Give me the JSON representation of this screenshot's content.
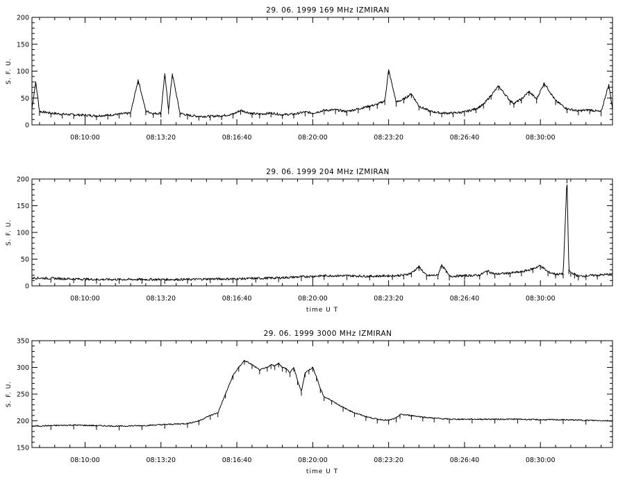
{
  "chart_data": [
    {
      "type": "line",
      "title": "29. 06. 1999    169 MHz    IZMIRAN",
      "ylabel": "S. F. U.",
      "xlabel": "",
      "x_range": [
        "08:07:40",
        "08:33:10"
      ],
      "x_ticks": [
        "08:10:00",
        "08:13:20",
        "08:16:40",
        "08:20:00",
        "08:23:20",
        "08:26:40",
        "08:30:00"
      ],
      "ylim": [
        0,
        200
      ],
      "y_ticks": [
        0,
        50,
        100,
        150,
        200
      ],
      "grid": false,
      "series": [
        {
          "x": [
            "08:07:40",
            "08:07:50",
            "08:08:00",
            "08:08:30",
            "08:09:00",
            "08:09:30",
            "08:10:00",
            "08:10:30",
            "08:11:00",
            "08:11:30",
            "08:12:00",
            "08:12:20",
            "08:12:40",
            "08:13:00",
            "08:13:20",
            "08:13:30",
            "08:13:40",
            "08:13:50",
            "08:14:10",
            "08:14:30",
            "08:15:00",
            "08:15:30",
            "08:16:00",
            "08:16:30",
            "08:16:50",
            "08:17:20",
            "08:17:40",
            "08:18:10",
            "08:18:40",
            "08:19:10",
            "08:19:40",
            "08:20:00",
            "08:20:30",
            "08:21:00",
            "08:21:30",
            "08:22:00",
            "08:22:30",
            "08:22:50",
            "08:23:10",
            "08:23:20",
            "08:23:40",
            "08:24:00",
            "08:24:20",
            "08:24:40",
            "08:25:10",
            "08:25:40",
            "08:26:10",
            "08:26:40",
            "08:27:10",
            "08:27:30",
            "08:27:50",
            "08:28:10",
            "08:28:40",
            "08:28:50",
            "08:29:10",
            "08:29:30",
            "08:29:50",
            "08:30:10",
            "08:30:40",
            "08:31:10",
            "08:31:40",
            "08:32:10",
            "08:32:40",
            "08:33:00",
            "08:33:10"
          ],
          "values": [
            30,
            80,
            25,
            22,
            20,
            19,
            18,
            17,
            18,
            20,
            22,
            84,
            26,
            21,
            22,
            95,
            28,
            95,
            22,
            18,
            16,
            16,
            17,
            20,
            27,
            21,
            20,
            22,
            19,
            20,
            24,
            22,
            27,
            28,
            25,
            30,
            35,
            38,
            45,
            102,
            42,
            48,
            58,
            35,
            25,
            22,
            22,
            24,
            30,
            38,
            55,
            72,
            45,
            40,
            48,
            62,
            48,
            78,
            45,
            30,
            26,
            28,
            24,
            75,
            30
          ]
        }
      ]
    },
    {
      "type": "line",
      "title": "29. 06. 1999    204 MHz    IZMIRAN",
      "ylabel": "S. F. U.",
      "xlabel": "time  U T",
      "x_range": [
        "08:07:40",
        "08:33:10"
      ],
      "x_ticks": [
        "08:10:00",
        "08:13:20",
        "08:16:40",
        "08:20:00",
        "08:23:20",
        "08:26:40",
        "08:30:00"
      ],
      "ylim": [
        0,
        200
      ],
      "y_ticks": [
        0,
        50,
        100,
        150,
        200
      ],
      "grid": false,
      "series": [
        {
          "x": [
            "08:07:40",
            "08:08:30",
            "08:09:30",
            "08:10:30",
            "08:11:30",
            "08:12:30",
            "08:13:30",
            "08:14:30",
            "08:15:30",
            "08:16:30",
            "08:17:30",
            "08:18:30",
            "08:19:30",
            "08:20:00",
            "08:20:30",
            "08:21:30",
            "08:22:30",
            "08:23:30",
            "08:24:00",
            "08:24:20",
            "08:24:40",
            "08:25:00",
            "08:25:30",
            "08:25:40",
            "08:26:00",
            "08:26:40",
            "08:27:20",
            "08:27:40",
            "08:28:00",
            "08:28:40",
            "08:29:10",
            "08:29:40",
            "08:30:00",
            "08:30:20",
            "08:30:40",
            "08:31:00",
            "08:31:10",
            "08:31:15",
            "08:31:20",
            "08:31:30",
            "08:31:40",
            "08:32:00",
            "08:32:30",
            "08:33:10"
          ],
          "values": [
            15,
            14,
            13,
            12,
            12,
            12,
            12,
            12,
            13,
            13,
            14,
            15,
            17,
            18,
            19,
            19,
            18,
            19,
            20,
            24,
            36,
            19,
            20,
            40,
            18,
            19,
            20,
            28,
            22,
            24,
            26,
            32,
            38,
            26,
            22,
            22,
            200,
            30,
            25,
            22,
            18,
            19,
            20,
            22
          ]
        }
      ]
    },
    {
      "type": "line",
      "title": "29. 06. 1999    3000 MHz    IZMIRAN",
      "ylabel": "S. F. U.",
      "xlabel": "time  U T",
      "x_range": [
        "08:07:40",
        "08:33:10"
      ],
      "x_ticks": [
        "08:10:00",
        "08:13:20",
        "08:16:40",
        "08:20:00",
        "08:23:20",
        "08:26:40",
        "08:30:00"
      ],
      "ylim": [
        150,
        350
      ],
      "y_ticks": [
        150,
        200,
        250,
        300,
        350
      ],
      "grid": false,
      "series": [
        {
          "x": [
            "08:07:40",
            "08:08:30",
            "08:09:30",
            "08:10:30",
            "08:11:30",
            "08:12:30",
            "08:13:30",
            "08:14:30",
            "08:15:00",
            "08:15:30",
            "08:15:50",
            "08:16:10",
            "08:16:30",
            "08:16:45",
            "08:17:00",
            "08:17:20",
            "08:17:40",
            "08:18:00",
            "08:18:10",
            "08:18:20",
            "08:18:30",
            "08:18:40",
            "08:18:50",
            "08:19:00",
            "08:19:10",
            "08:19:20",
            "08:19:30",
            "08:19:40",
            "08:19:50",
            "08:20:00",
            "08:20:10",
            "08:20:20",
            "08:20:30",
            "08:20:50",
            "08:21:20",
            "08:21:50",
            "08:22:20",
            "08:22:50",
            "08:23:20",
            "08:23:40",
            "08:23:50",
            "08:24:20",
            "08:24:50",
            "08:25:20",
            "08:26:00",
            "08:27:00",
            "08:28:00",
            "08:29:00",
            "08:30:00",
            "08:31:00",
            "08:32:00",
            "08:33:10"
          ],
          "values": [
            190,
            191,
            192,
            191,
            190,
            191,
            193,
            195,
            200,
            210,
            215,
            250,
            285,
            300,
            313,
            305,
            295,
            300,
            305,
            303,
            308,
            300,
            298,
            290,
            300,
            275,
            255,
            290,
            295,
            300,
            282,
            260,
            245,
            238,
            225,
            215,
            208,
            203,
            201,
            205,
            212,
            210,
            207,
            205,
            203,
            203,
            203,
            203,
            202,
            202,
            201,
            200
          ]
        }
      ]
    }
  ]
}
